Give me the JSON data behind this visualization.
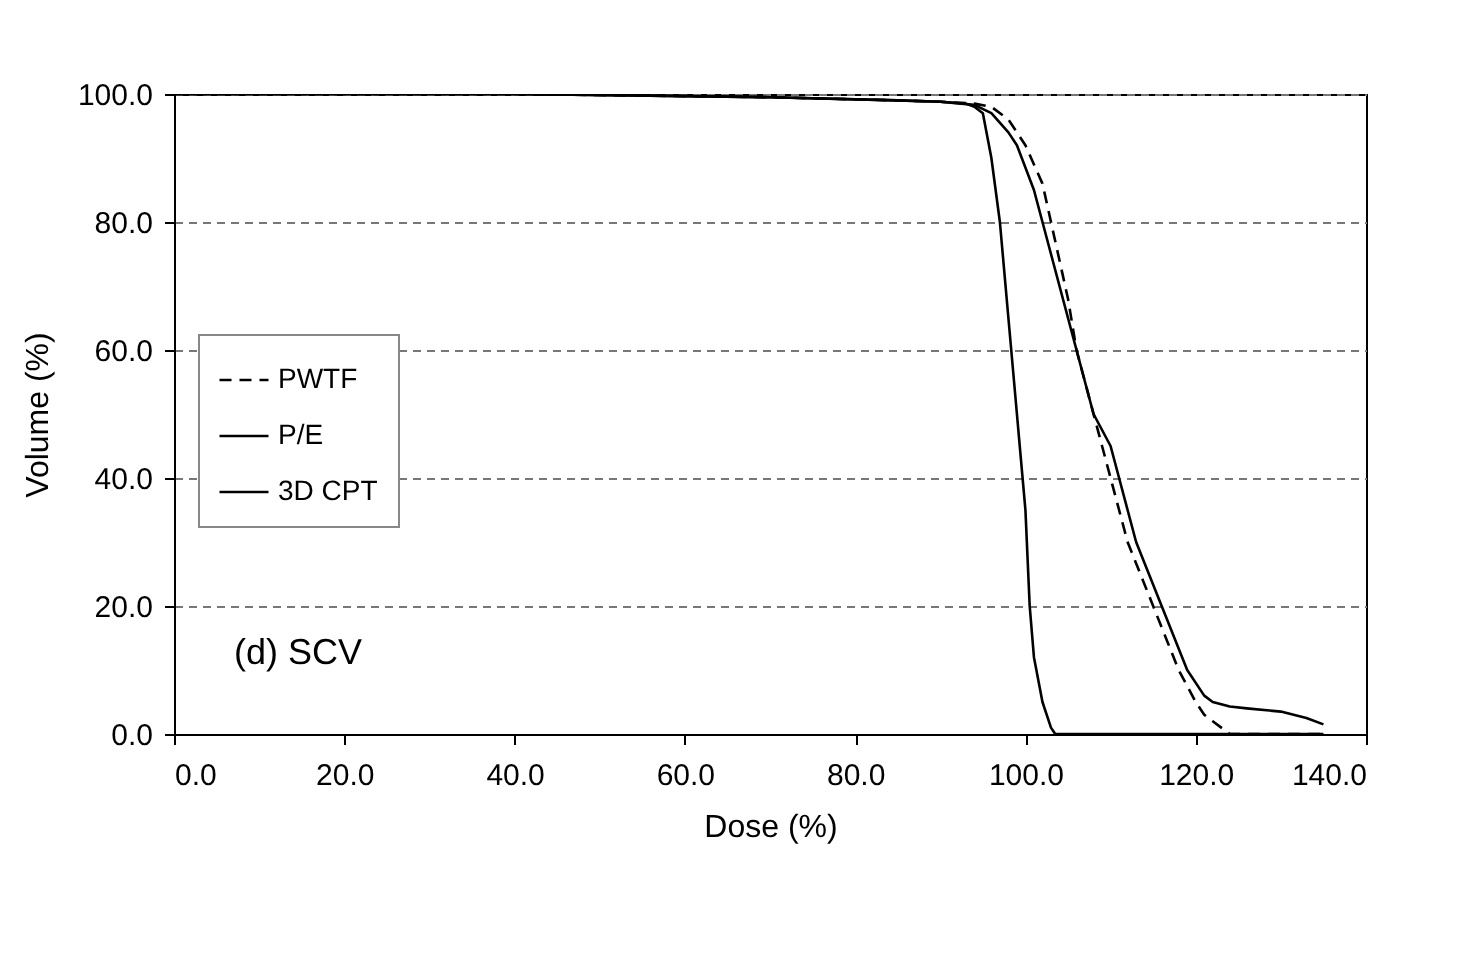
{
  "chart_data": {
    "type": "line",
    "xlabel": "Dose (%)",
    "ylabel": "Volume (%)",
    "annotations": [
      "(d) SCV"
    ],
    "xlim": [
      0,
      140
    ],
    "ylim": [
      0,
      100
    ],
    "xticks": [
      {
        "value": 0,
        "label": "0.0"
      },
      {
        "value": 20,
        "label": "20.0"
      },
      {
        "value": 40,
        "label": "40.0"
      },
      {
        "value": 60,
        "label": "60.0"
      },
      {
        "value": 80,
        "label": "80.0"
      },
      {
        "value": 100,
        "label": "100.0"
      },
      {
        "value": 120,
        "label": "120.0"
      },
      {
        "value": 140,
        "label": "140.0"
      }
    ],
    "yticks": [
      {
        "value": 0,
        "label": "0.0"
      },
      {
        "value": 20,
        "label": "20.0"
      },
      {
        "value": 40,
        "label": "40.0"
      },
      {
        "value": 60,
        "label": "60.0"
      },
      {
        "value": 80,
        "label": "80.0"
      },
      {
        "value": 100,
        "label": "100.0"
      }
    ],
    "grid": "y",
    "legend": "left",
    "marker": "none",
    "series": [
      {
        "name": "PWTF",
        "color": "#000000",
        "line_style": "dashed",
        "x": [
          0,
          40,
          70,
          85,
          90,
          94,
          96,
          98,
          100,
          102,
          103,
          105,
          106,
          108,
          109,
          110,
          112,
          115,
          118,
          120,
          121,
          122,
          123,
          124,
          135
        ],
        "values": [
          100,
          100,
          99.5,
          99,
          98.8,
          98.5,
          98,
          96,
          92,
          86,
          80,
          68,
          60,
          50,
          45,
          40,
          30,
          20,
          10,
          5,
          3,
          2,
          1,
          0,
          0
        ]
      },
      {
        "name": "P/E",
        "color": "#000000",
        "line_style": "solid",
        "x": [
          0,
          40,
          70,
          85,
          90,
          94,
          96,
          98,
          99,
          101,
          103,
          104,
          106,
          107,
          108,
          110,
          113,
          116,
          119,
          121,
          122,
          124,
          126,
          130,
          133,
          135
        ],
        "values": [
          100,
          100,
          99.5,
          99,
          98.8,
          98.3,
          97,
          94,
          92,
          85,
          75,
          70,
          60,
          55,
          50,
          45,
          30,
          20,
          10,
          6,
          5,
          4.3,
          4,
          3.5,
          2.5,
          1.5
        ]
      },
      {
        "name": "3D CPT",
        "color": "#000000",
        "line_style": "solid",
        "x": [
          0,
          40,
          70,
          85,
          90,
          93,
          94,
          95,
          96,
          97,
          98,
          99,
          100,
          100.5,
          101,
          102,
          103,
          103.5,
          110,
          120,
          135
        ],
        "values": [
          100,
          100,
          99.5,
          99,
          98.8,
          98.5,
          98,
          97,
          90,
          80,
          65,
          50,
          35,
          20,
          12,
          5,
          1,
          0,
          0,
          0,
          0
        ]
      }
    ]
  }
}
